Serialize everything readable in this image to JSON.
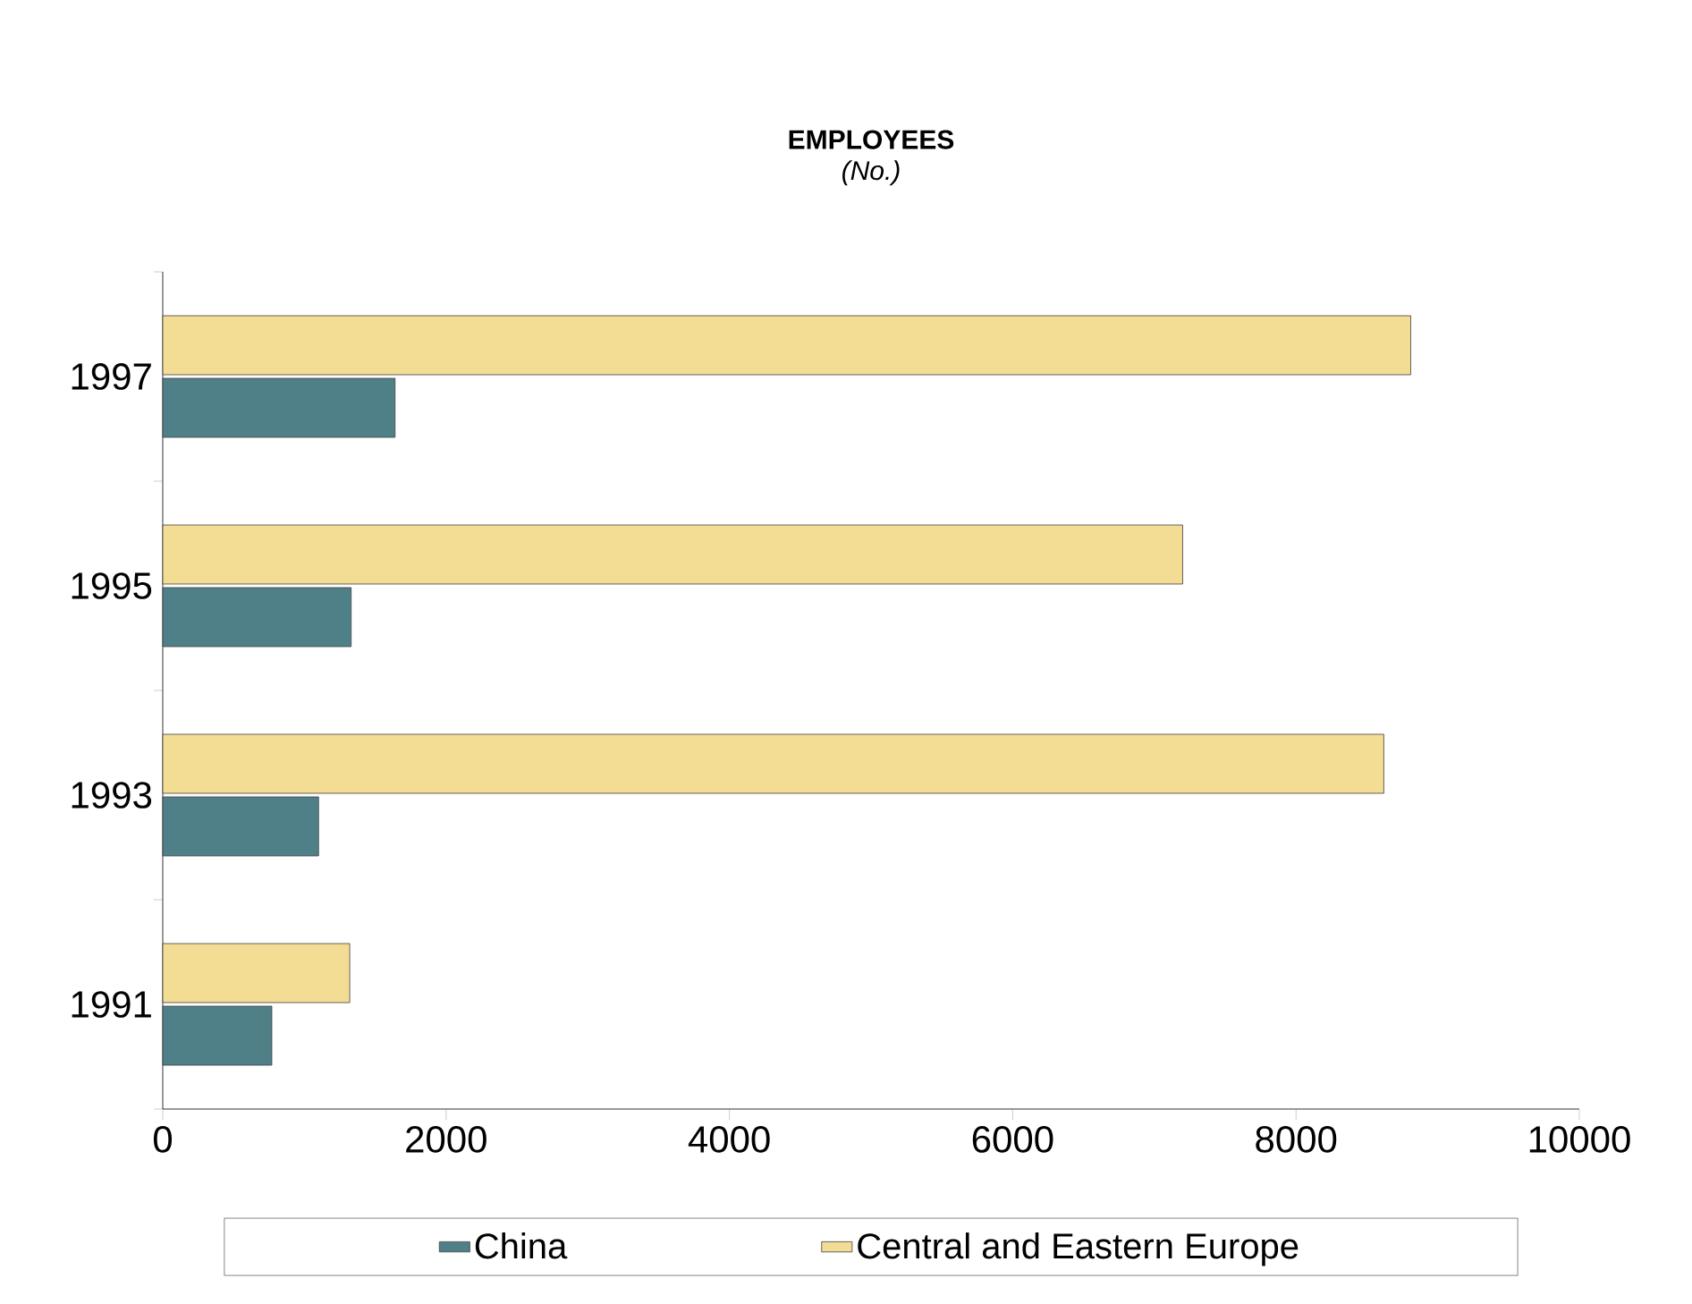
{
  "chart_data": {
    "type": "bar",
    "orientation": "horizontal",
    "title": "EMPLOYEES",
    "subtitle": "(No.)",
    "categories": [
      "1997",
      "1995",
      "1993",
      "1991"
    ],
    "series": [
      {
        "name": "China",
        "color": "#4f8088",
        "values": [
          1640,
          1330,
          1100,
          770
        ]
      },
      {
        "name": "Central and Eastern Europe",
        "color": "#f3dc93",
        "values": [
          8810,
          7200,
          8620,
          1320
        ]
      }
    ],
    "xlim": [
      0,
      10000
    ],
    "xticks": [
      0,
      2000,
      4000,
      6000,
      8000,
      10000
    ],
    "legend": "bottom"
  }
}
